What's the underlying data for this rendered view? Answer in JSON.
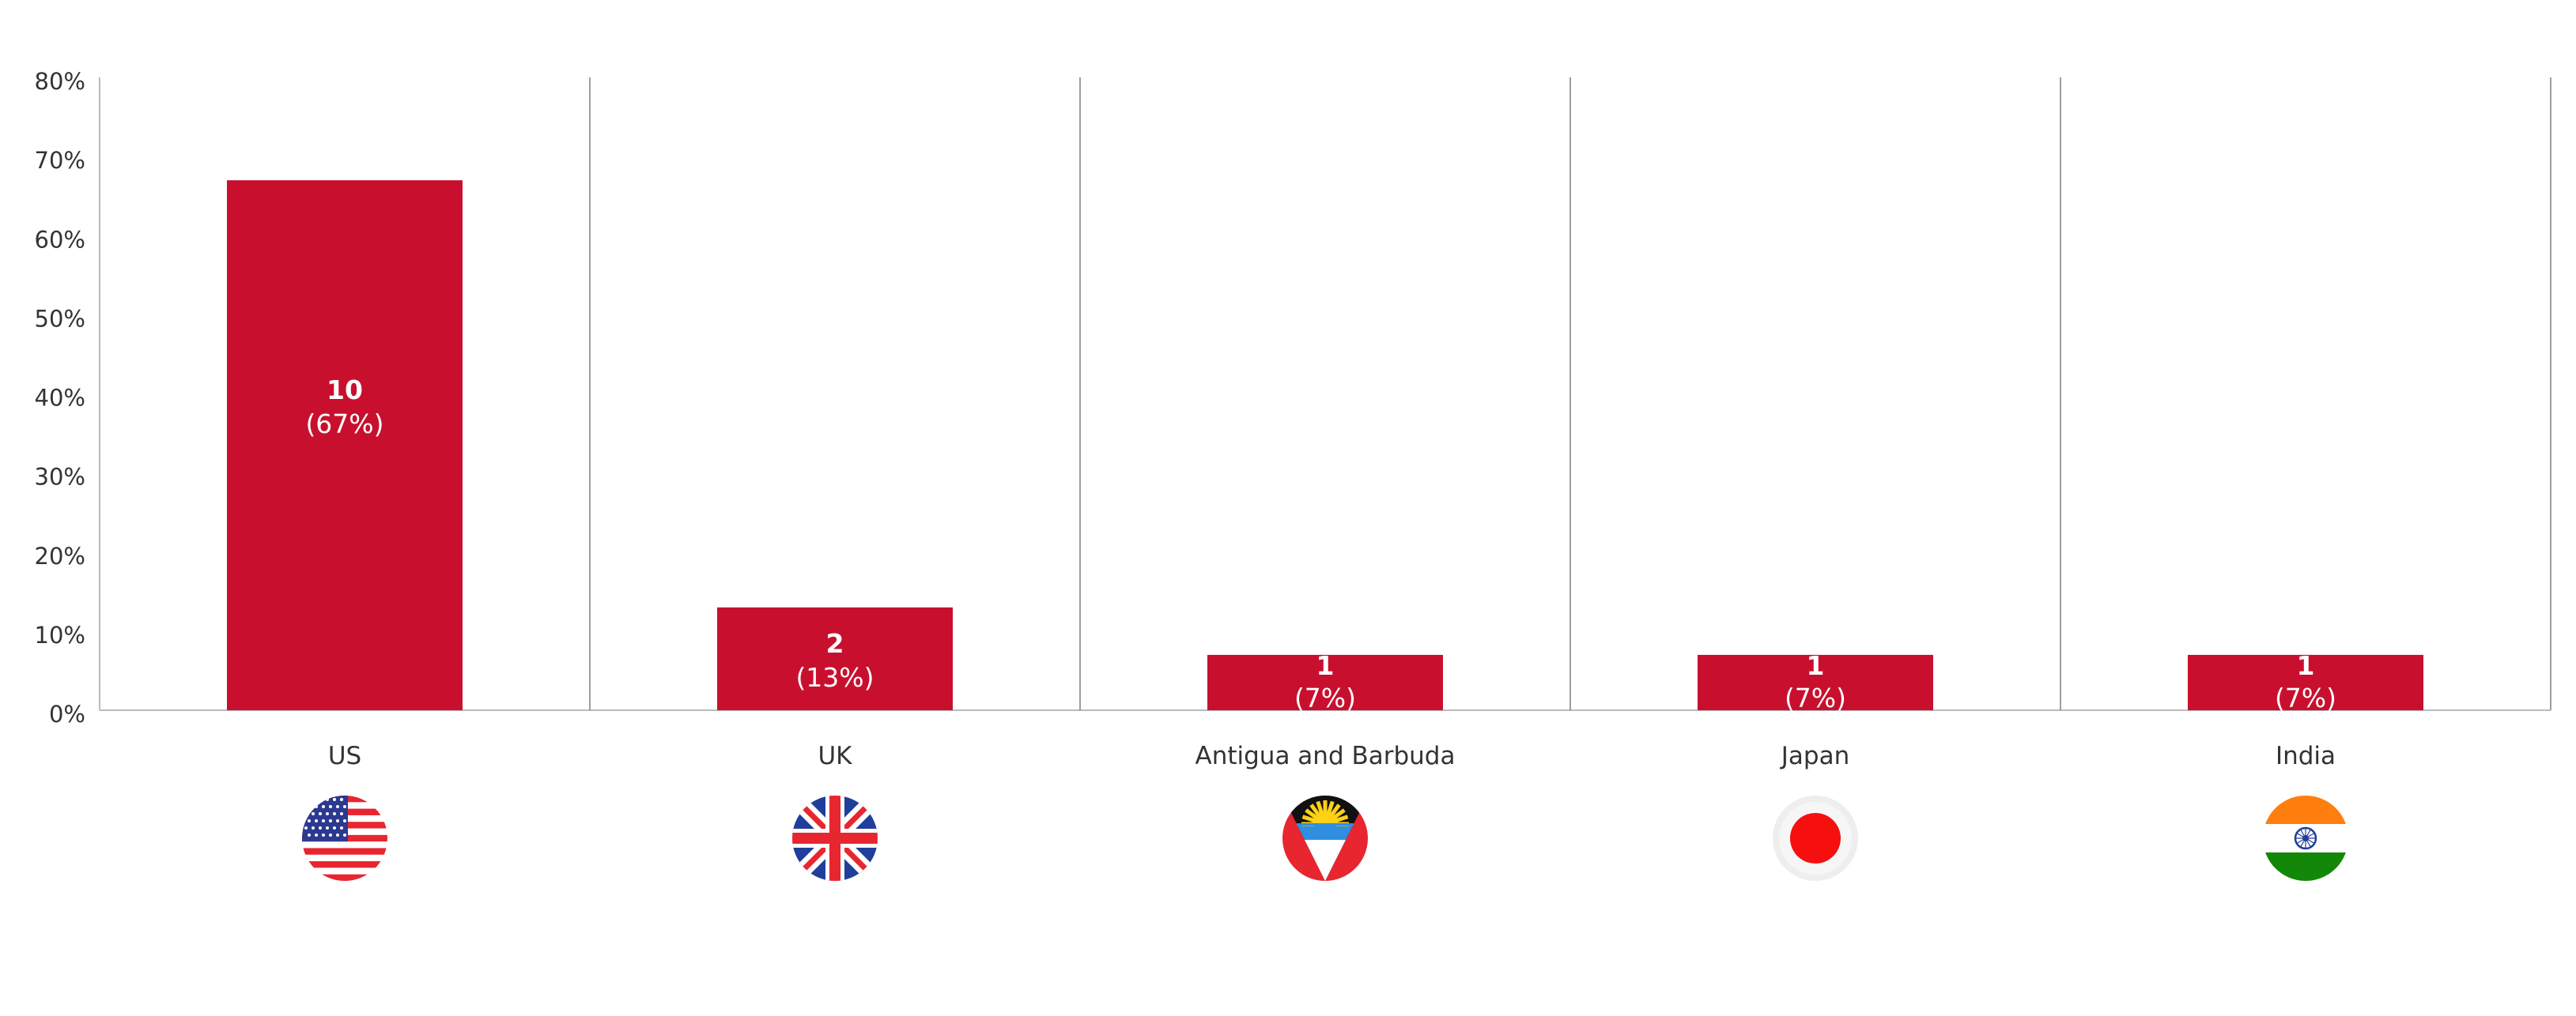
{
  "chart_data": {
    "type": "bar",
    "title": "",
    "xlabel": "",
    "ylabel": "",
    "ylim": [
      0,
      80
    ],
    "y_ticks": [
      "0%",
      "10%",
      "20%",
      "30%",
      "40%",
      "50%",
      "60%",
      "70%",
      "80%"
    ],
    "grid": "vertical separators between categories",
    "categories": [
      "US",
      "UK",
      "Antigua and Barbuda",
      "Japan",
      "India"
    ],
    "values": [
      67,
      13,
      7,
      7,
      7
    ],
    "counts": [
      "10",
      "2",
      "1",
      "1",
      "1"
    ],
    "percent_labels": [
      "(67%)",
      "(13%)",
      "(7%)",
      "(7%)",
      "(7%)"
    ],
    "flags": [
      "us-flag-icon",
      "uk-flag-icon",
      "antigua-and-barbuda-flag-icon",
      "japan-flag-icon",
      "india-flag-icon"
    ],
    "colors": {
      "bar": "#c8102e",
      "axis": "#bbbbbb",
      "separator": "#7f7f7f",
      "text": "#333333"
    }
  }
}
